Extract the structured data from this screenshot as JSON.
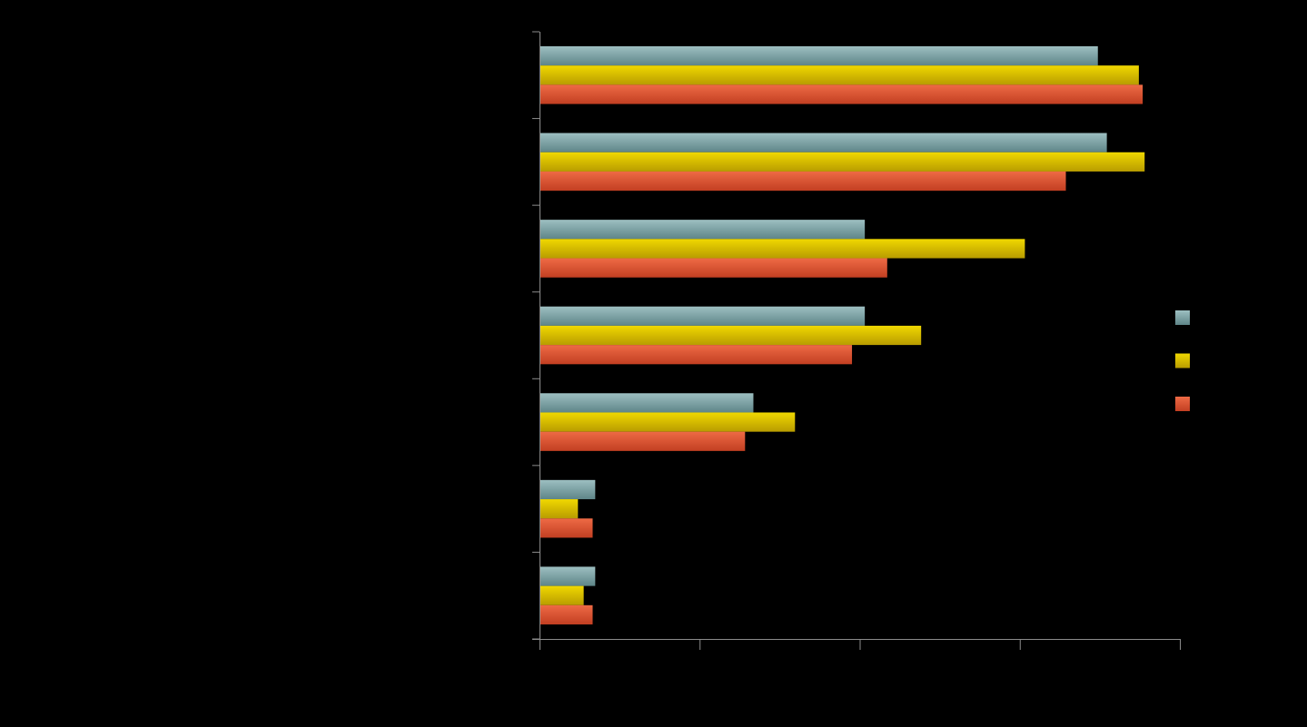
{
  "chart_data": {
    "type": "bar",
    "orientation": "horizontal",
    "title": "",
    "xlabel": "",
    "ylabel": "",
    "categories": [
      "",
      "",
      "",
      "",
      "",
      "",
      ""
    ],
    "xlim": [
      0,
      100
    ],
    "x_ticks": [
      0,
      25,
      50,
      75,
      100
    ],
    "show_tick_labels": false,
    "grid": false,
    "legend_position": "right",
    "series": [
      {
        "name": "",
        "color": "#7ba1a3",
        "values": [
          87.2,
          88.6,
          50.8,
          50.8,
          33.4,
          8.7,
          8.7
        ]
      },
      {
        "name": "",
        "color": "#e1c200",
        "values": [
          93.6,
          94.5,
          75.8,
          59.6,
          39.9,
          6.0,
          6.9
        ]
      },
      {
        "name": "",
        "color": "#de4f2f",
        "values": [
          94.2,
          82.2,
          54.3,
          48.8,
          32.1,
          8.3,
          8.3
        ]
      }
    ]
  }
}
